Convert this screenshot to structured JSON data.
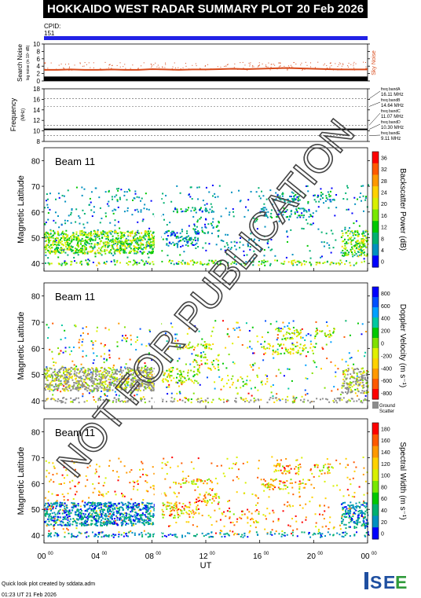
{
  "header": {
    "title": "HOKKAIDO WEST RADAR SUMMARY PLOT",
    "date": "20 Feb 2026",
    "cpid_label": "CPID:",
    "cpid_value": "151"
  },
  "watermark": "NOT FOR PUBLICATION",
  "footer": {
    "credit": "Quick look plot created by sddata.adm",
    "timestamp": "01:23 UT 21 Feb 2026"
  },
  "logo_text": "ISEE",
  "colors": {
    "beam_blue": "#2121e6",
    "sky_noise": "#d84a1a"
  },
  "chart_data": [
    {
      "type": "scatter",
      "ylabel": "Search Noise",
      "ylabel_sub": "log noise (in 10¹ dB)",
      "ylim": [
        0,
        10
      ],
      "yticks": [
        "10",
        "8",
        "6",
        "4",
        "2",
        "0"
      ],
      "legend": "Sky Noise",
      "series": [
        {
          "name": "Sky Noise",
          "x": [
            0,
            1,
            2,
            3,
            4,
            5,
            6,
            7,
            8,
            9,
            10,
            11,
            12,
            13,
            14,
            15,
            16,
            17,
            18,
            19,
            20,
            21,
            22,
            23,
            24
          ],
          "values": [
            3.0,
            3.0,
            3.1,
            3.0,
            3.0,
            3.1,
            3.0,
            3.0,
            3.2,
            3.1,
            3.0,
            3.1,
            3.1,
            3.2,
            3.3,
            3.2,
            3.3,
            3.4,
            3.5,
            3.4,
            3.3,
            3.2,
            3.1,
            3.1,
            3.1
          ]
        },
        {
          "name": "Search Noise",
          "x": [
            0,
            24
          ],
          "values": [
            1.2,
            1.2
          ]
        }
      ]
    },
    {
      "type": "line",
      "ylabel": "Frequency",
      "ylabel_sub": "(MHz)",
      "ylim": [
        8,
        18
      ],
      "yticks": [
        "18",
        "16",
        "14",
        "12",
        "10",
        "8"
      ],
      "bands": [
        {
          "label": "freq bandA",
          "value": "16.11 MHz",
          "freq": 16.11
        },
        {
          "label": "freq bandB",
          "value": "14.64 MHz",
          "freq": 14.64
        },
        {
          "label": "freq bandC",
          "value": "11.07 MHz",
          "freq": 11.07
        },
        {
          "label": "freq bandD",
          "value": "10.30 MHz",
          "freq": 10.3
        },
        {
          "label": "freq bandE",
          "value": "9.11 MHz",
          "freq": 9.11
        }
      ],
      "operating_freq": 10.3
    },
    {
      "type": "heatmap",
      "panel_label": "Beam 11",
      "ylabel": "Magnetic Latitude",
      "ylim": [
        37,
        85
      ],
      "yticks": [
        "80",
        "70",
        "60",
        "50",
        "40"
      ],
      "colorbar_label": "Backscatter Power (dB)",
      "colorbar_ticks": [
        "36",
        "32",
        "28",
        "24",
        "20",
        "16",
        "12",
        "8",
        "4",
        "0"
      ],
      "colorbar_colors": [
        "#ff0000",
        "#ff5a00",
        "#ff9900",
        "#ffd200",
        "#d8f000",
        "#78e800",
        "#00c800",
        "#00b070",
        "#0090c0",
        "#0000ff"
      ]
    },
    {
      "type": "heatmap",
      "panel_label": "Beam 11",
      "ylabel": "Magnetic Latitude",
      "ylim": [
        37,
        85
      ],
      "yticks": [
        "80",
        "70",
        "60",
        "50",
        "40"
      ],
      "colorbar_label": "Doppler Velocity (m s⁻¹)",
      "colorbar_ticks": [
        "800",
        "600",
        "400",
        "200",
        "0",
        "-200",
        "-400",
        "-600",
        "-800"
      ],
      "colorbar_colors": [
        "#0000ff",
        "#0050ff",
        "#00a0ff",
        "#00c8a0",
        "#00c800",
        "#80e000",
        "#e0f000",
        "#ffd200",
        "#ff9900",
        "#ff5a00",
        "#ff0000"
      ],
      "ground_label": "Ground",
      "scatter_label": "Scatter"
    },
    {
      "type": "heatmap",
      "panel_label": "Beam 11",
      "ylabel": "Magnetic Latitude",
      "ylim": [
        37,
        85
      ],
      "yticks": [
        "80",
        "70",
        "60",
        "50",
        "40"
      ],
      "colorbar_label": "Spectral Width (m s⁻¹)",
      "colorbar_ticks": [
        "180",
        "160",
        "140",
        "120",
        "100",
        "80",
        "60",
        "40",
        "20",
        "0"
      ],
      "colorbar_colors": [
        "#ff0000",
        "#ff5a00",
        "#ff9900",
        "#ffd200",
        "#d8f000",
        "#78e800",
        "#00c800",
        "#00b070",
        "#0090c0",
        "#0000ff"
      ]
    }
  ],
  "x_axis": {
    "label": "UT",
    "ticks": [
      {
        "h": "00",
        "m": "00",
        "t": 0
      },
      {
        "h": "04",
        "m": "00",
        "t": 4
      },
      {
        "h": "08",
        "m": "00",
        "t": 8
      },
      {
        "h": "12",
        "m": "00",
        "t": 12
      },
      {
        "h": "16",
        "m": "00",
        "t": 16
      },
      {
        "h": "20",
        "m": "00",
        "t": 20
      },
      {
        "h": "00",
        "m": "00",
        "t": 24
      }
    ]
  }
}
